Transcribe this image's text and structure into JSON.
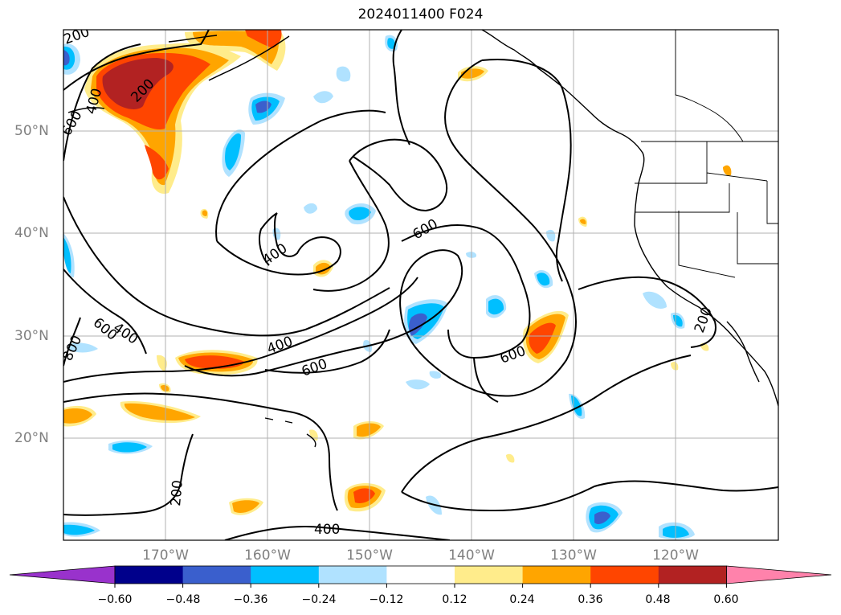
{
  "title": "2024011400 F024",
  "lat_labels": [
    "50°N",
    "40°N",
    "30°N",
    "20°N"
  ],
  "lon_labels": [
    "170°W",
    "160°W",
    "150°W",
    "140°W",
    "130°W",
    "120°W"
  ],
  "contour_labels": [
    "200",
    "400",
    "600",
    "800"
  ],
  "colorbar": {
    "ticks": [
      "−0.60",
      "−0.48",
      "−0.36",
      "−0.24",
      "−0.12",
      "0.12",
      "0.24",
      "0.36",
      "0.48",
      "0.60"
    ],
    "colors": [
      "#9932cc",
      "#00008b",
      "#3a5fcd",
      "#00bfff",
      "#b0e2ff",
      "#ffffff",
      "#ffec8b",
      "#ffa500",
      "#ff4500",
      "#b22222",
      "#ff82ab"
    ]
  }
}
